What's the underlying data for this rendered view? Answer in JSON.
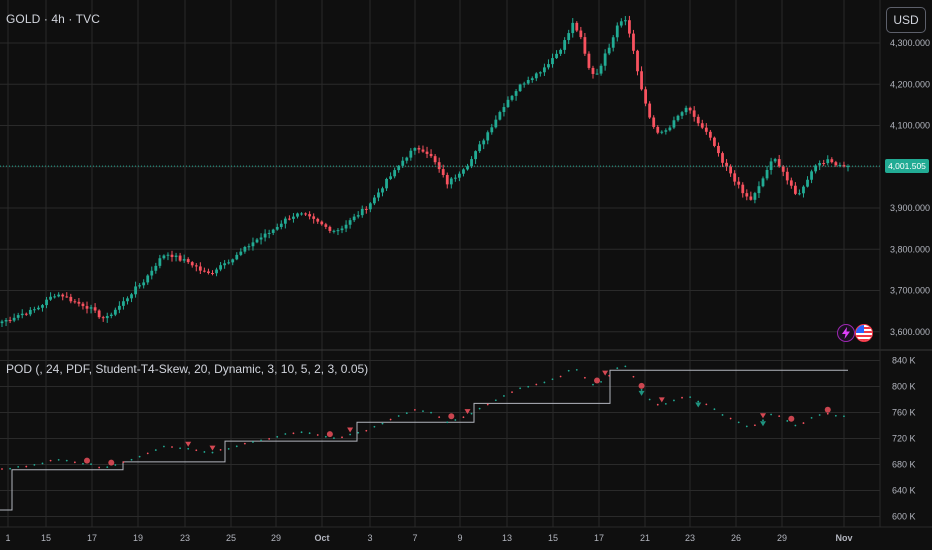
{
  "header": {
    "symbol_label": "GOLD · 4h · TVC",
    "currency_button": "USD"
  },
  "price_axis": {
    "labels": [
      "4,300.000",
      "4,200.000",
      "4,100.000",
      "3,900.000",
      "3,800.000",
      "3,700.000",
      "3,600.000"
    ],
    "values": [
      4300,
      4200,
      4100,
      3900,
      3800,
      3700,
      3600
    ],
    "current_price_label": "4,001.505",
    "current_price": 4001.505
  },
  "indicator": {
    "legend": "POD (, 24, PDF, Student-T4-Skew, 20, Dynamic, 3, 10, 5, 2, 3, 0.05)",
    "axis_labels": [
      "840 K",
      "800 K",
      "760 K",
      "720 K",
      "680 K",
      "640 K",
      "600 K"
    ],
    "axis_values": [
      840,
      800,
      760,
      720,
      680,
      640,
      600
    ]
  },
  "time_axis": {
    "labels": [
      "1",
      "15",
      "17",
      "19",
      "23",
      "25",
      "29",
      "Oct",
      "3",
      "7",
      "9",
      "13",
      "15",
      "17",
      "21",
      "23",
      "26",
      "29",
      "Nov"
    ],
    "bold_labels": [
      "Oct",
      "Nov"
    ]
  },
  "icons": {
    "events_badge": "lightning-icon",
    "flag_badge": "us-flag-icon"
  },
  "colors": {
    "background": "#0f0f0f",
    "grid": "#2a2a2a",
    "up_candle": "#22ab94",
    "down_candle": "#f7525f",
    "current_price_line": "#22ab94",
    "step_line": "#b2b5be"
  },
  "chart_data": {
    "type": "candlestick",
    "symbol": "GOLD",
    "interval": "4h",
    "source": "TVC",
    "close_path": [
      3625,
      3630,
      3640,
      3645,
      3650,
      3660,
      3675,
      3690,
      3690,
      3680,
      3670,
      3665,
      3655,
      3640,
      3630,
      3650,
      3665,
      3685,
      3705,
      3720,
      3745,
      3770,
      3790,
      3785,
      3775,
      3770,
      3760,
      3745,
      3740,
      3755,
      3770,
      3775,
      3790,
      3805,
      3820,
      3830,
      3840,
      3855,
      3870,
      3880,
      3885,
      3880,
      3870,
      3860,
      3850,
      3845,
      3855,
      3870,
      3885,
      3900,
      3920,
      3945,
      3970,
      3990,
      4015,
      4035,
      4045,
      4040,
      4020,
      3990,
      3960,
      3975,
      3995,
      4010,
      4040,
      4070,
      4100,
      4130,
      4160,
      4180,
      4200,
      4215,
      4225,
      4240,
      4260,
      4280,
      4310,
      4350,
      4310,
      4240,
      4220,
      4260,
      4300,
      4350,
      4360,
      4290,
      4200,
      4130,
      4090,
      4080,
      4095,
      4120,
      4140,
      4130,
      4100,
      4080,
      4050,
      4010,
      3990,
      3960,
      3930,
      3920,
      3950,
      3990,
      4020,
      4000,
      3960,
      3930,
      3950,
      3990,
      4010,
      4015,
      4010,
      4005,
      4001.505
    ],
    "y_range": [
      3580,
      4380
    ],
    "indicator_series": {
      "name": "POD",
      "range": [
        590,
        850
      ],
      "step_levels": [
        {
          "from": 0,
          "to": 12,
          "value": 610
        },
        {
          "from": 12,
          "to": 123,
          "value": 672
        },
        {
          "from": 123,
          "to": 225,
          "value": 684
        },
        {
          "from": 225,
          "to": 357,
          "value": 716
        },
        {
          "from": 357,
          "to": 474,
          "value": 745
        },
        {
          "from": 474,
          "to": 610,
          "value": 774
        },
        {
          "from": 610,
          "to": 848,
          "value": 825
        }
      ]
    }
  }
}
